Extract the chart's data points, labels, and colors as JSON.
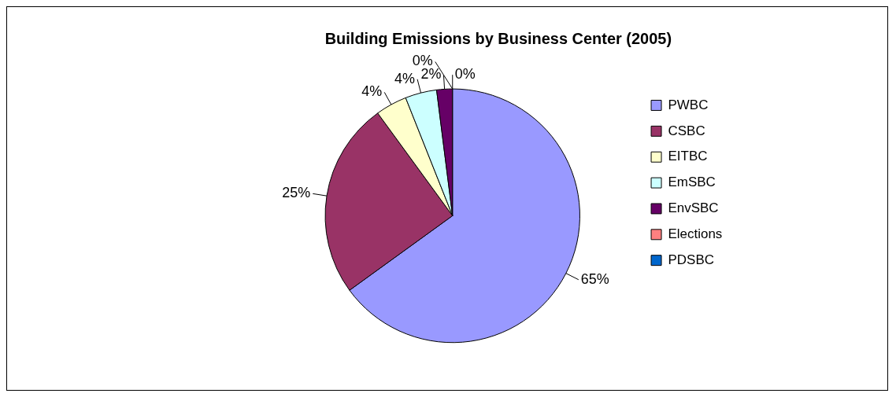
{
  "chart_data": {
    "type": "pie",
    "title": "Building Emissions by Business Center (2005)",
    "categories": [
      "PWBC",
      "CSBC",
      "EITBC",
      "EmSBC",
      "EnvSBC",
      "Elections",
      "PDSBC"
    ],
    "values": [
      65,
      25,
      4,
      4,
      2,
      0,
      0
    ],
    "value_labels": [
      "65%",
      "25%",
      "4%",
      "4%",
      "2%",
      "0%",
      "0%"
    ],
    "colors": [
      "#9999ff",
      "#993366",
      "#ffffcc",
      "#ccffff",
      "#660066",
      "#ff8080",
      "#0066cc"
    ],
    "legend": "right"
  }
}
